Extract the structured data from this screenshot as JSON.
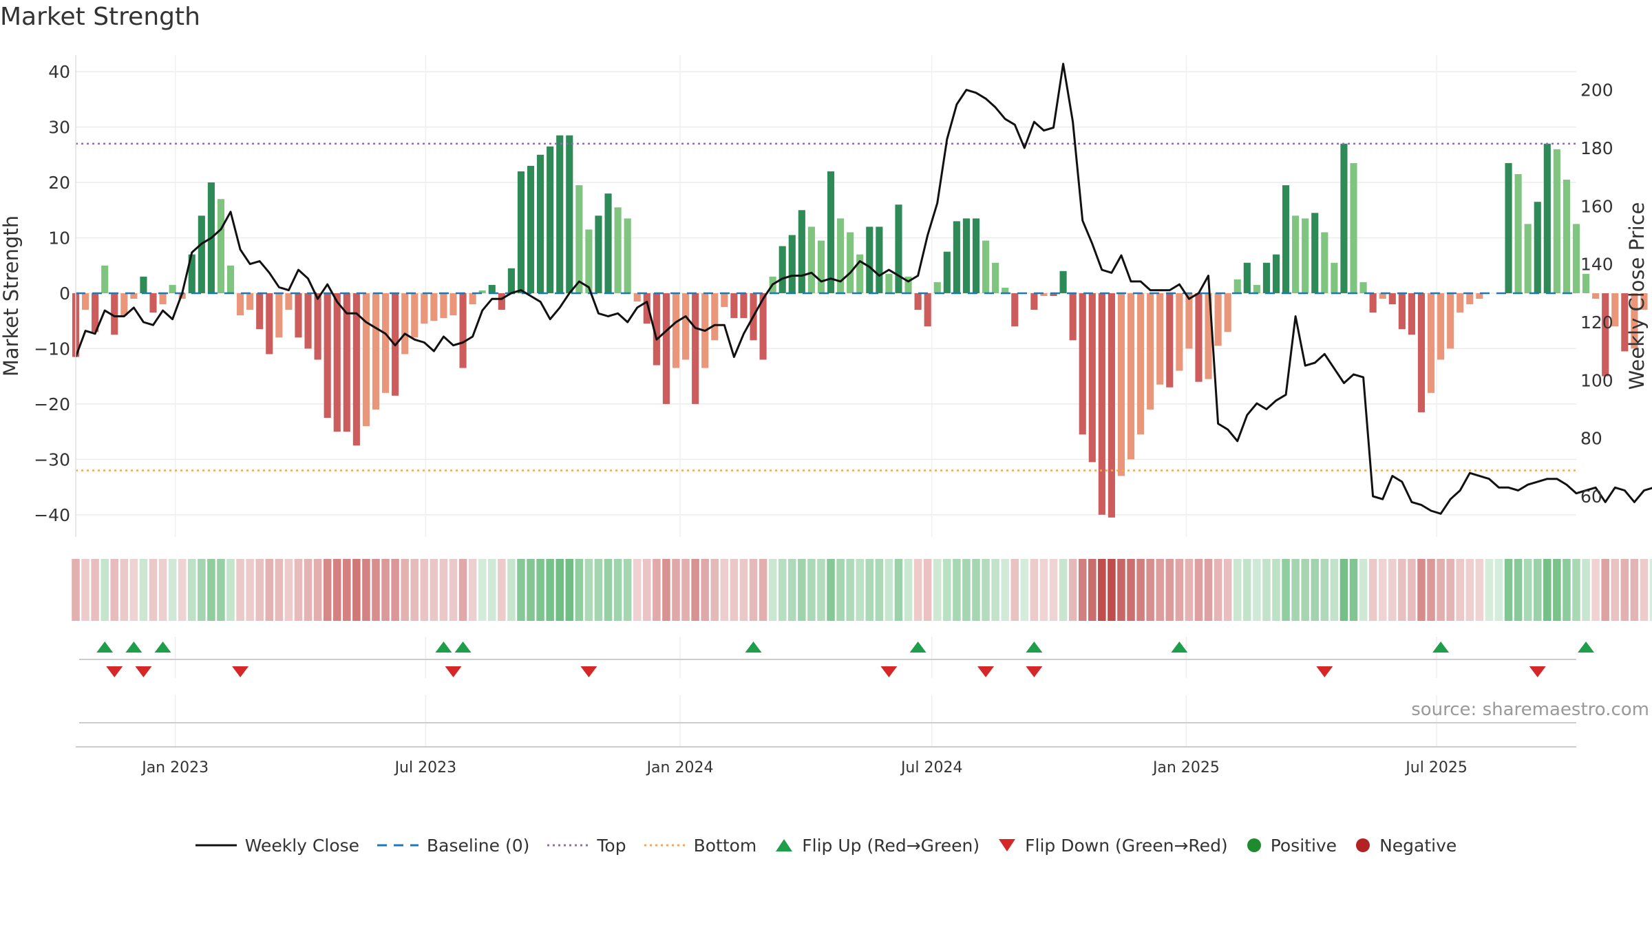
{
  "title": "Market Strength",
  "source": "source: sharemaestro.com",
  "colors": {
    "strong_green": "#2e8b57",
    "light_green": "#7fc47f",
    "strong_red": "#cd5c5c",
    "light_red": "#e9967a",
    "close_line": "#111111",
    "baseline": "#1f77b4",
    "top": "#9467bd",
    "bottom": "#f4a460",
    "flip_up": "#1e9e4a",
    "flip_down": "#d62728",
    "positive": "#1e8c2e",
    "negative": "#b22222"
  },
  "legend": [
    {
      "kind": "line",
      "label": "Weekly Close"
    },
    {
      "kind": "dash",
      "label": "Baseline (0)"
    },
    {
      "kind": "dot-purple",
      "label": "Top"
    },
    {
      "kind": "dot-orange",
      "label": "Bottom"
    },
    {
      "kind": "tri-up",
      "label": "Flip Up (Red→Green)"
    },
    {
      "kind": "tri-down",
      "label": "Flip Down (Green→Red)"
    },
    {
      "kind": "circle-green",
      "label": "Positive"
    },
    {
      "kind": "circle-red",
      "label": "Negative"
    }
  ],
  "chart_data": {
    "type": "bar",
    "title": "Market Strength",
    "ylabel": "Market Strength",
    "y2label": "Weekly Close Price",
    "ylim": [
      -44,
      43
    ],
    "y2lim": [
      46,
      212
    ],
    "yticks": [
      "40",
      "30",
      "20",
      "10",
      "0",
      "−10",
      "−20",
      "−30",
      "−40"
    ],
    "y2ticks": [
      "200",
      "180",
      "160",
      "140",
      "120",
      "100",
      "80",
      "60"
    ],
    "x_range": [
      "2022-10-21",
      "2025-10-10"
    ],
    "xticks": [
      {
        "label": "Jan 2023",
        "date": "2023-01-01"
      },
      {
        "label": "Jul 2023",
        "date": "2023-07-01"
      },
      {
        "label": "Jan 2024",
        "date": "2024-01-01"
      },
      {
        "label": "Jul 2024",
        "date": "2024-07-01"
      },
      {
        "label": "Jan 2025",
        "date": "2025-01-01"
      },
      {
        "label": "Jul 2025",
        "date": "2025-07-01"
      }
    ],
    "week_start": "2022-10-21",
    "top": 27,
    "bottom": -32,
    "baseline": 0,
    "strength": [
      -11.5,
      -3,
      -7,
      5,
      -7.5,
      -4,
      -1,
      3,
      -3.5,
      -2,
      1.5,
      -1,
      7,
      14,
      20,
      17,
      5,
      -4,
      -3,
      -6.5,
      -11,
      -8,
      -3,
      -8,
      -10,
      -12,
      -22.5,
      -25,
      -25,
      -27.5,
      -24,
      -21,
      -18,
      -18.5,
      -11,
      -8,
      -5.5,
      -5,
      -4.5,
      -4,
      -13.5,
      -2,
      0.5,
      1.5,
      -3,
      4.5,
      22,
      23,
      25,
      26.5,
      28.5,
      28.5,
      19.5,
      11.5,
      14,
      18,
      15.5,
      13.5,
      -1.5,
      -5.5,
      -13,
      -20,
      -13.5,
      -12,
      -20,
      -13.5,
      -8.5,
      -2.5,
      -4.5,
      -4.5,
      -8.5,
      -12,
      3,
      8.5,
      10.5,
      15,
      12,
      9.5,
      22,
      13.5,
      11,
      7,
      12,
      12,
      3.5,
      16,
      3,
      -3,
      -6,
      2,
      7.5,
      13,
      13.5,
      13.5,
      9.5,
      5.5,
      1,
      -6,
      0,
      -3,
      -0.5,
      -0.5,
      4,
      -8.5,
      -25.5,
      -30.5,
      -40,
      -40.5,
      -33,
      -30,
      -25.5,
      -21,
      -16.5,
      -17,
      -14,
      -10,
      -16,
      -15.5,
      -9.5,
      -7,
      2.5,
      5.5,
      1.5,
      5.5,
      7,
      19.5,
      14,
      13.5,
      14.5,
      11,
      5.5,
      27,
      23.5,
      2,
      -3.5,
      -1,
      -2,
      -6.5,
      -7.5,
      -21.5,
      -18,
      -12,
      -10,
      -3.5,
      -2,
      -1,
      0,
      0,
      23.5,
      21.5,
      12.5,
      16.5,
      27,
      26,
      20.5,
      12.5,
      3.5,
      -1,
      -15,
      -6,
      -10.5,
      -10,
      -3,
      0
    ],
    "close": [
      108,
      117,
      116,
      124,
      122,
      122,
      125,
      120,
      119,
      124,
      121,
      130,
      144,
      147,
      149,
      152,
      158,
      145,
      140,
      141,
      137,
      132,
      131,
      138,
      135,
      128,
      133,
      127,
      123,
      123,
      120,
      118,
      116,
      112,
      116,
      114,
      113,
      110,
      115,
      112,
      113,
      115,
      124,
      128,
      128,
      130,
      131,
      129,
      127,
      121,
      125,
      130,
      134,
      132,
      123,
      122,
      123,
      120,
      125,
      127,
      114,
      117,
      120,
      122,
      118,
      117,
      119,
      119,
      108,
      116,
      122,
      128,
      133,
      135,
      136,
      136,
      137,
      134,
      135,
      134,
      137,
      141,
      139,
      136,
      138,
      136,
      134,
      136,
      150,
      161,
      183,
      195,
      200,
      199,
      197,
      194,
      190,
      188,
      180,
      189,
      186,
      187,
      209,
      189,
      155,
      147,
      138,
      137,
      143,
      134,
      134,
      131,
      131,
      131,
      133,
      128,
      130,
      136,
      85,
      83,
      79,
      88,
      92,
      90,
      93,
      95,
      122,
      105,
      106,
      109,
      104,
      99,
      102,
      101,
      60,
      59,
      67,
      65,
      58,
      57,
      55,
      54,
      59,
      62,
      68,
      67,
      66,
      63,
      63,
      62,
      64,
      65,
      66,
      66,
      64,
      61,
      62,
      63,
      58,
      63,
      62,
      58,
      62,
      63
    ],
    "flip_up_weeks": [
      3,
      6,
      9,
      38,
      40,
      70,
      87,
      99,
      114,
      141,
      156
    ],
    "flip_down_weeks": [
      4,
      7,
      17,
      39,
      53,
      84,
      94,
      99,
      129,
      151
    ],
    "annotation": "source: sharemaestro.com"
  }
}
